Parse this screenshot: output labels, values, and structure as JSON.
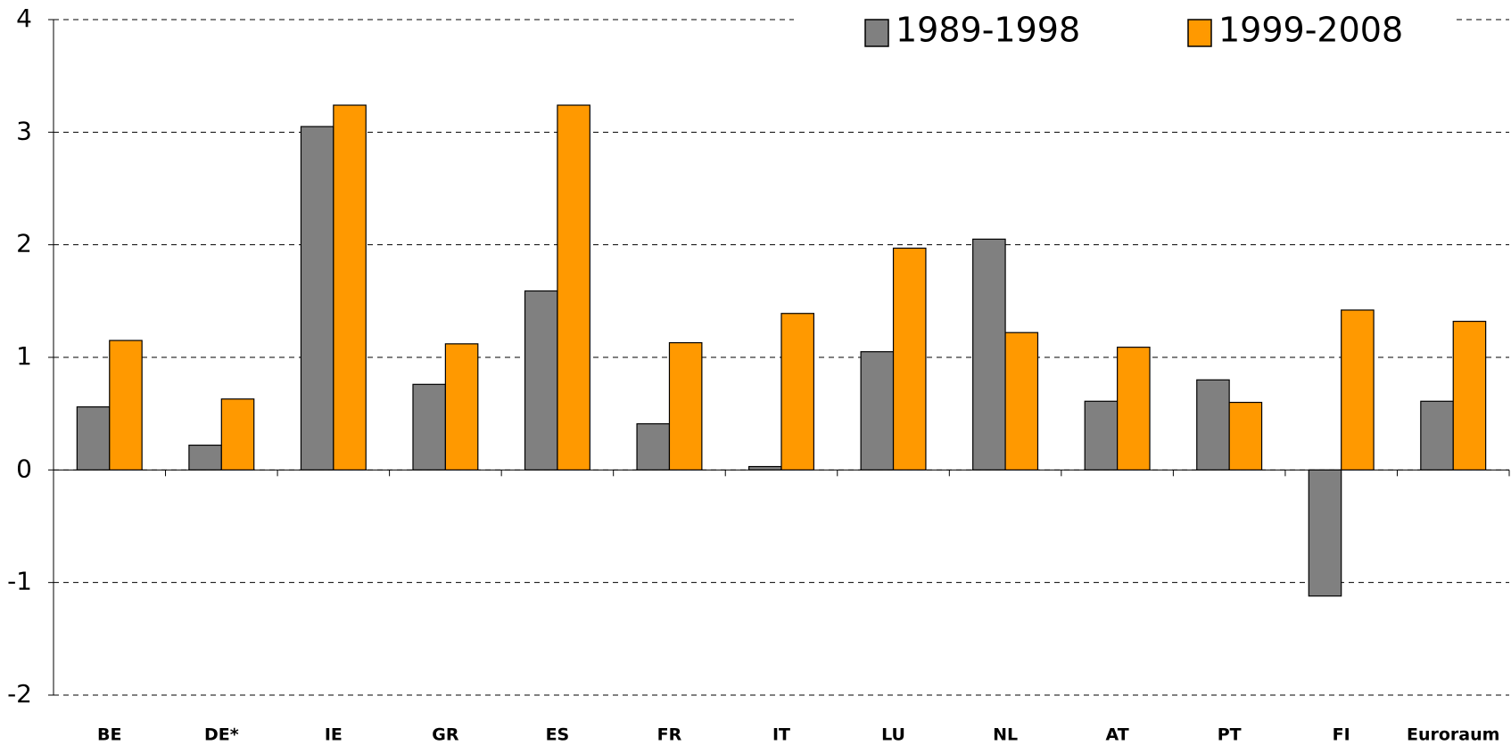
{
  "chart_data": {
    "type": "bar",
    "categories": [
      "BE",
      "DE*",
      "IE",
      "GR",
      "ES",
      "FR",
      "IT",
      "LU",
      "NL",
      "AT",
      "PT",
      "FI",
      "Euroraum"
    ],
    "series": [
      {
        "name": "1989-1998",
        "color": "#808080",
        "values": [
          0.56,
          0.22,
          3.05,
          0.76,
          1.59,
          0.41,
          0.03,
          1.05,
          2.05,
          0.61,
          0.8,
          -1.12,
          0.61
        ]
      },
      {
        "name": "1999-2008",
        "color": "#ff9900",
        "values": [
          1.15,
          0.63,
          3.24,
          1.12,
          3.24,
          1.13,
          1.39,
          1.97,
          1.22,
          1.09,
          0.6,
          1.42,
          1.32
        ]
      }
    ],
    "ylim": [
      -2,
      4
    ],
    "yticks": [
      -2,
      -1,
      0,
      1,
      2,
      3,
      4
    ],
    "grid": true,
    "legend": "top"
  }
}
